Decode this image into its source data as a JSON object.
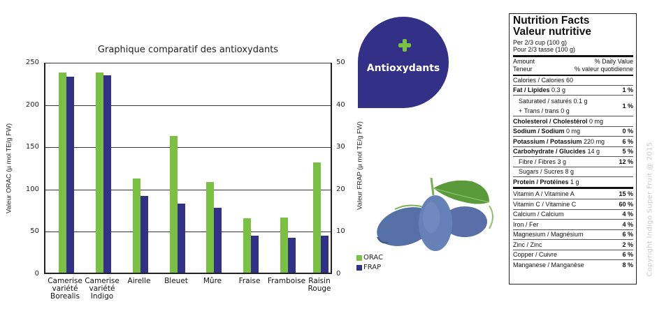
{
  "chart_data": {
    "type": "bar",
    "title": "Graphique comparatif des antioxydants",
    "categories": [
      "Camerise variété Borealis",
      "Camerise variété Indigo",
      "Airelle",
      "Bleuet",
      "Mûre",
      "Fraise",
      "Framboise",
      "Raisin Rouge"
    ],
    "category_lines": [
      [
        "Camerise",
        "variété",
        "Borealis"
      ],
      [
        "Camerise",
        "variété",
        "Indigo"
      ],
      [
        "Airelle"
      ],
      [
        "Bleuet"
      ],
      [
        "Mûre"
      ],
      [
        "Fraise"
      ],
      [
        "Framboise"
      ],
      [
        "Raisin",
        "Rouge"
      ]
    ],
    "series": [
      {
        "name": "ORAC",
        "axis": "left",
        "color": "#7ac143",
        "values": [
          237,
          237,
          111,
          162,
          107,
          64,
          65,
          130
        ]
      },
      {
        "name": "FRAP",
        "axis": "right",
        "color": "#333087",
        "values": [
          46.3,
          46.7,
          18.1,
          16.4,
          15.3,
          8.7,
          8.2,
          8.7
        ]
      }
    ],
    "ylabel_left": "Valeur ORAC (µ mol TE/g FW)",
    "ylabel_right": "Valeur FRAP (µ mol TE/g FW)",
    "ylim_left": [
      0,
      250
    ],
    "ylim_right": [
      0,
      50
    ],
    "yticks_left": [
      "0",
      "50",
      "100",
      "150",
      "200",
      "250"
    ],
    "yticks_right": [
      "0",
      "10",
      "20",
      "30",
      "40",
      "50"
    ],
    "grid": true,
    "legend_position": "right-bottom"
  },
  "legend": [
    {
      "label": "ORAC",
      "color": "#7ac143"
    },
    {
      "label": "FRAP",
      "color": "#333087"
    }
  ],
  "badge": {
    "label": "Antioxydants",
    "icon": "plus-icon",
    "bg_color": "#333087",
    "accent_color": "#7ac143"
  },
  "nutrition": {
    "title_en": "Nutrition Facts",
    "title_fr": "Valeur nutritive",
    "serving_en": "Per 2/3 cup (100 g)",
    "serving_fr": "Pour 2/3 tasse (100 g)",
    "amount_en": "Amount",
    "amount_fr": "Teneur",
    "dv_en": "% Daily Value",
    "dv_fr": "% valeur quotidienne",
    "calories": "Calories / Calories 60",
    "fat": {
      "label": "Fat / Lipides",
      "amount": "0.3 g",
      "pct": "1 %"
    },
    "saturated": "Saturated / saturés 0.1 g",
    "trans": "+ Trans / trans 0 g",
    "sat_pct": "1 %",
    "cholesterol": {
      "label": "Cholesterol / Cholestérol",
      "amount": "0 mg"
    },
    "sodium": {
      "label": "Sodium / Sodium",
      "amount": "0 mg",
      "pct": "0 %"
    },
    "potassium": {
      "label": "Potassium / Potassium",
      "amount": "220 mg",
      "pct": "6 %"
    },
    "carbohydrate": {
      "label": "Carbohydrate / Glucides",
      "amount": "14 g",
      "pct": "5 %"
    },
    "fibre": {
      "label": "Fibre / Fibres 3 g",
      "pct": "12 %"
    },
    "sugars": "Sugars / Sucres 8 g",
    "protein": {
      "label": "Protein / Protéines",
      "amount": "1 g"
    },
    "vitamins": [
      {
        "label": "Vitamin A / Vitamine A",
        "pct": "15 %"
      },
      {
        "label": "Vitamin C / Vitamine C",
        "pct": "60 %"
      },
      {
        "label": "Calcium / Calcium",
        "pct": "4 %"
      },
      {
        "label": "Iron / Fer",
        "pct": "4 %"
      },
      {
        "label": "Magnesium / Magnésium",
        "pct": "6 %"
      },
      {
        "label": "Zinc / Zinc",
        "pct": "2 %"
      },
      {
        "label": "Copper / Cuivre",
        "pct": "6 %"
      },
      {
        "label": "Manganese / Manganèse",
        "pct": "8 %"
      }
    ]
  },
  "copyright": "Copyright Indigo Super Fruit @ 2015"
}
